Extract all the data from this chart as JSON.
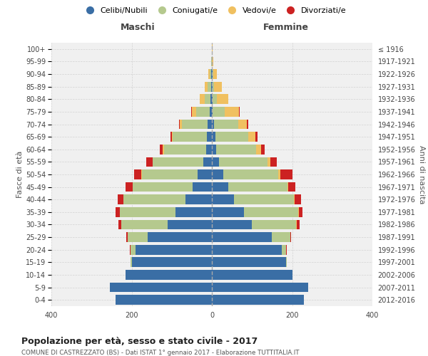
{
  "age_groups": [
    "0-4",
    "5-9",
    "10-14",
    "15-19",
    "20-24",
    "25-29",
    "30-34",
    "35-39",
    "40-44",
    "45-49",
    "50-54",
    "55-59",
    "60-64",
    "65-69",
    "70-74",
    "75-79",
    "80-84",
    "85-89",
    "90-94",
    "95-99",
    "100+"
  ],
  "birth_years": [
    "2012-2016",
    "2007-2011",
    "2002-2006",
    "1997-2001",
    "1992-1996",
    "1987-1991",
    "1982-1986",
    "1977-1981",
    "1972-1976",
    "1967-1971",
    "1962-1966",
    "1957-1961",
    "1952-1956",
    "1947-1951",
    "1942-1946",
    "1937-1941",
    "1932-1936",
    "1927-1931",
    "1922-1926",
    "1917-1921",
    "≤ 1916"
  ],
  "colors": {
    "celibi": "#3a6ea5",
    "coniugati": "#b5c98e",
    "vedovi": "#f0c060",
    "divorziati": "#cc2222",
    "background": "#f0f0f0",
    "grid": "#cccccc",
    "dashed_line": "#999999"
  },
  "maschi": {
    "celibi": [
      240,
      255,
      215,
      200,
      190,
      160,
      110,
      90,
      65,
      48,
      35,
      22,
      15,
      12,
      10,
      5,
      3,
      2,
      2,
      0,
      0
    ],
    "coniugati": [
      0,
      0,
      0,
      3,
      12,
      50,
      115,
      140,
      155,
      150,
      140,
      125,
      105,
      85,
      65,
      35,
      15,
      8,
      4,
      1,
      0
    ],
    "vedovi": [
      0,
      0,
      0,
      0,
      0,
      0,
      0,
      0,
      0,
      0,
      1,
      1,
      2,
      3,
      5,
      10,
      12,
      8,
      3,
      1,
      0
    ],
    "divorziati": [
      0,
      0,
      0,
      0,
      2,
      3,
      8,
      10,
      15,
      18,
      18,
      15,
      8,
      3,
      2,
      1,
      0,
      0,
      0,
      0,
      0
    ]
  },
  "femmine": {
    "celibi": [
      230,
      240,
      200,
      185,
      175,
      150,
      100,
      80,
      55,
      40,
      28,
      18,
      10,
      8,
      5,
      2,
      1,
      1,
      1,
      0,
      0
    ],
    "coniugati": [
      0,
      0,
      0,
      2,
      10,
      45,
      110,
      135,
      150,
      148,
      138,
      120,
      100,
      82,
      60,
      30,
      12,
      5,
      2,
      0,
      0
    ],
    "vedovi": [
      0,
      0,
      0,
      0,
      0,
      0,
      1,
      1,
      2,
      2,
      5,
      8,
      12,
      18,
      22,
      35,
      28,
      18,
      10,
      3,
      1
    ],
    "divorziati": [
      0,
      0,
      0,
      0,
      2,
      2,
      8,
      10,
      15,
      18,
      30,
      15,
      10,
      5,
      3,
      2,
      0,
      0,
      0,
      0,
      0
    ]
  },
  "title": "Popolazione per età, sesso e stato civile - 2017",
  "subtitle": "COMUNE DI CASTREZZATO (BS) - Dati ISTAT 1° gennaio 2017 - Elaborazione TUTTITALIA.IT",
  "xlabel_left": "Maschi",
  "xlabel_right": "Femmine",
  "ylabel_left": "Fasce di età",
  "ylabel_right": "Anni di nascita",
  "xlim": 400,
  "legend_labels": [
    "Celibi/Nubili",
    "Coniugati/e",
    "Vedovi/e",
    "Divorziati/e"
  ]
}
